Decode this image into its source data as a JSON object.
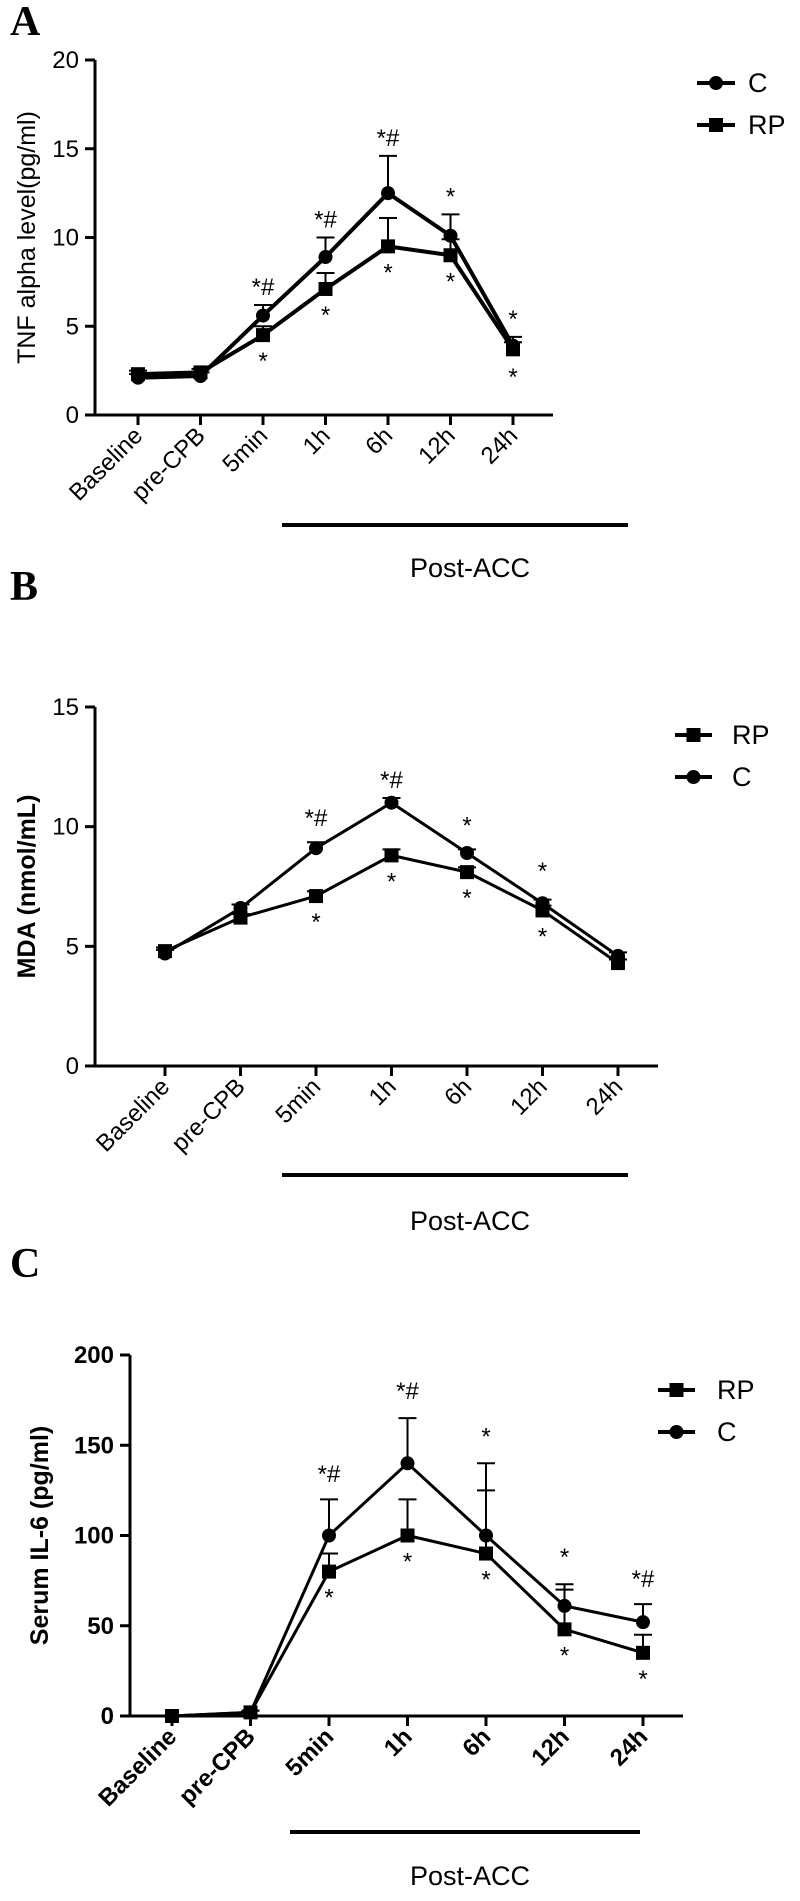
{
  "chart_data": [
    {
      "type": "line",
      "panel": "A",
      "title": "",
      "ylabel": "TNF alpha level(pg/ml)",
      "xlabel": "",
      "ylim": [
        0,
        20
      ],
      "yticks": [
        0,
        5,
        10,
        15,
        20
      ],
      "categories": [
        "Baseline",
        "pre-CPB",
        "5min",
        "1h",
        "6h",
        "12h",
        "24h"
      ],
      "bracket_label": "Post-ACC",
      "legend": [
        "C",
        "RP"
      ],
      "series": [
        {
          "name": "C",
          "marker": "circle",
          "values": [
            2.1,
            2.2,
            5.6,
            8.9,
            12.5,
            10.1,
            3.9
          ],
          "errors": [
            0.2,
            0.2,
            0.6,
            1.1,
            2.1,
            1.2,
            0.5
          ]
        },
        {
          "name": "RP",
          "marker": "square",
          "values": [
            2.3,
            2.4,
            4.5,
            7.1,
            9.5,
            9.0,
            3.7
          ],
          "errors": [
            0.2,
            0.2,
            0.5,
            0.9,
            1.6,
            0.9,
            0.4
          ]
        }
      ],
      "annotations": [
        {
          "index": 2,
          "value": 6.2,
          "pos": "above",
          "text": "*#"
        },
        {
          "index": 3,
          "value": 10.0,
          "pos": "above",
          "text": "*#"
        },
        {
          "index": 4,
          "value": 14.6,
          "pos": "above",
          "text": "*#"
        },
        {
          "index": 5,
          "value": 11.3,
          "pos": "above",
          "text": "*"
        },
        {
          "index": 6,
          "value": 4.4,
          "pos": "above",
          "text": "*"
        },
        {
          "index": 2,
          "value": 4.5,
          "pos": "below",
          "text": "*"
        },
        {
          "index": 3,
          "value": 7.1,
          "pos": "below",
          "text": "*"
        },
        {
          "index": 4,
          "value": 9.5,
          "pos": "below",
          "text": "*"
        },
        {
          "index": 5,
          "value": 9.0,
          "pos": "below",
          "text": "*"
        },
        {
          "index": 6,
          "value": 3.6,
          "pos": "below",
          "text": "*"
        }
      ]
    },
    {
      "type": "line",
      "panel": "B",
      "title": "",
      "ylabel": "MDA (nmol/mL)",
      "xlabel": "",
      "ylim": [
        0,
        15
      ],
      "yticks": [
        0,
        5,
        10,
        15
      ],
      "categories": [
        "Baseline",
        "pre-CPB",
        "5min",
        "1h",
        "6h",
        "12h",
        "24h"
      ],
      "bracket_label": "Post-ACC",
      "legend": [
        "RP",
        "C"
      ],
      "series": [
        {
          "name": "RP",
          "marker": "square",
          "values": [
            4.8,
            6.2,
            7.1,
            8.8,
            8.1,
            6.5,
            4.3
          ],
          "errors": [
            0.15,
            0.15,
            0.2,
            0.25,
            0.2,
            0.2,
            0.15
          ]
        },
        {
          "name": "C",
          "marker": "circle",
          "values": [
            4.7,
            6.6,
            9.1,
            11.0,
            8.9,
            6.8,
            4.6
          ],
          "errors": [
            0.15,
            0.15,
            0.25,
            0.2,
            0.15,
            0.15,
            0.15
          ]
        }
      ],
      "annotations": [
        {
          "index": 2,
          "value": 9.6,
          "pos": "above",
          "text": "*#"
        },
        {
          "index": 3,
          "value": 11.2,
          "pos": "above",
          "text": "*#"
        },
        {
          "index": 4,
          "value": 9.3,
          "pos": "above",
          "text": "*"
        },
        {
          "index": 5,
          "value": 7.4,
          "pos": "above",
          "text": "*"
        },
        {
          "index": 2,
          "value": 7.1,
          "pos": "below",
          "text": "*"
        },
        {
          "index": 3,
          "value": 8.8,
          "pos": "below",
          "text": "*"
        },
        {
          "index": 4,
          "value": 8.1,
          "pos": "below",
          "text": "*"
        },
        {
          "index": 5,
          "value": 6.5,
          "pos": "below",
          "text": "*"
        }
      ]
    },
    {
      "type": "line",
      "panel": "C",
      "title": "",
      "ylabel": "Serum IL-6 (pg/ml)",
      "xlabel": "",
      "ylim": [
        0,
        200
      ],
      "yticks": [
        0,
        50,
        100,
        150,
        200
      ],
      "categories": [
        "Baseline",
        "pre-CPB",
        "5min",
        "1h",
        "6h",
        "12h",
        "24h"
      ],
      "bracket_label": "Post-ACC",
      "legend": [
        "RP",
        "C"
      ],
      "series": [
        {
          "name": "RP",
          "marker": "square",
          "values": [
            0,
            2,
            80,
            100,
            90,
            48,
            35
          ],
          "errors": [
            0,
            1,
            10,
            20,
            35,
            22,
            10
          ]
        },
        {
          "name": "C",
          "marker": "circle",
          "values": [
            0,
            2,
            100,
            140,
            100,
            61,
            52
          ],
          "errors": [
            0,
            1,
            20,
            25,
            40,
            12,
            10
          ]
        }
      ],
      "annotations": [
        {
          "index": 2,
          "value": 124,
          "pos": "above",
          "text": "*#"
        },
        {
          "index": 3,
          "value": 170,
          "pos": "above",
          "text": "*#"
        },
        {
          "index": 4,
          "value": 145,
          "pos": "above",
          "text": "*"
        },
        {
          "index": 5,
          "value": 78,
          "pos": "above",
          "text": "*"
        },
        {
          "index": 6,
          "value": 66,
          "pos": "above",
          "text": "*#"
        },
        {
          "index": 2,
          "value": 80,
          "pos": "below",
          "text": "*"
        },
        {
          "index": 3,
          "value": 100,
          "pos": "below",
          "text": "*"
        },
        {
          "index": 4,
          "value": 90,
          "pos": "below",
          "text": "*"
        },
        {
          "index": 5,
          "value": 48,
          "pos": "below",
          "text": "*"
        },
        {
          "index": 6,
          "value": 35,
          "pos": "below",
          "text": "*"
        }
      ]
    }
  ]
}
